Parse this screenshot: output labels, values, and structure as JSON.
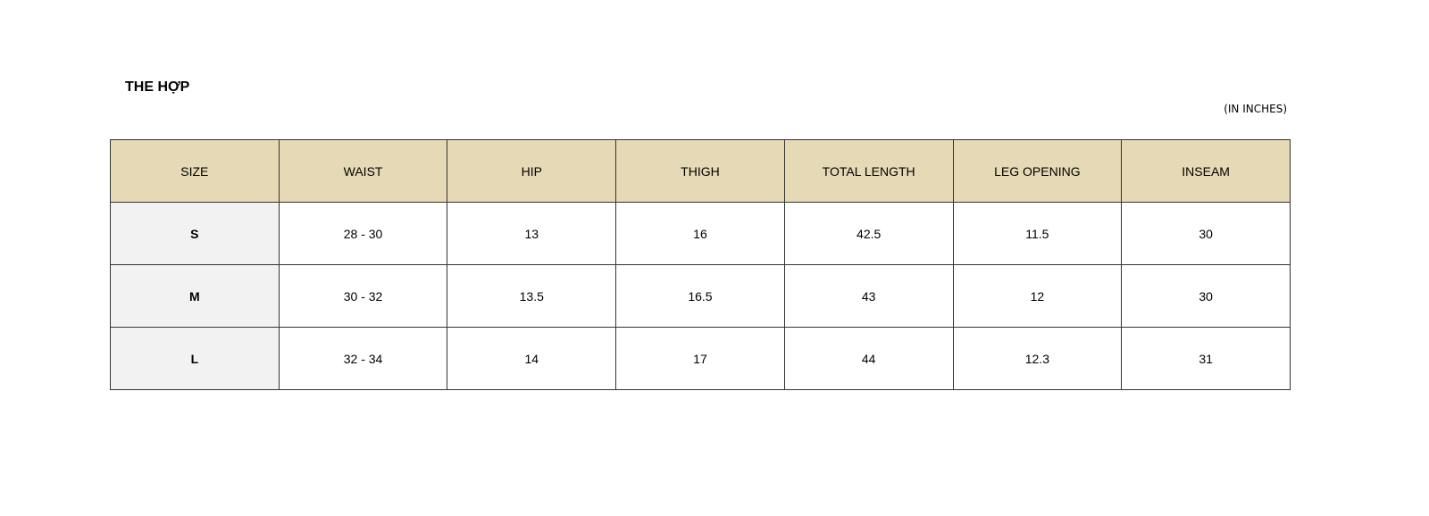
{
  "title": "THE HỢP",
  "unit_note": "(IN INCHES)",
  "colors": {
    "header_bg": "#e6d9b5",
    "size_col_bg": "#f2f2f2"
  },
  "table": {
    "headers": [
      "SIZE",
      "WAIST",
      "HIP",
      "THIGH",
      "TOTAL LENGTH",
      "LEG OPENING",
      "INSEAM"
    ],
    "rows": [
      [
        "S",
        "28 - 30",
        "13",
        "16",
        "42.5",
        "11.5",
        "30"
      ],
      [
        "M",
        "30 - 32",
        "13.5",
        "16.5",
        "43",
        "12",
        "30"
      ],
      [
        "L",
        "32 - 34",
        "14",
        "17",
        "44",
        "12.3",
        "31"
      ]
    ]
  }
}
